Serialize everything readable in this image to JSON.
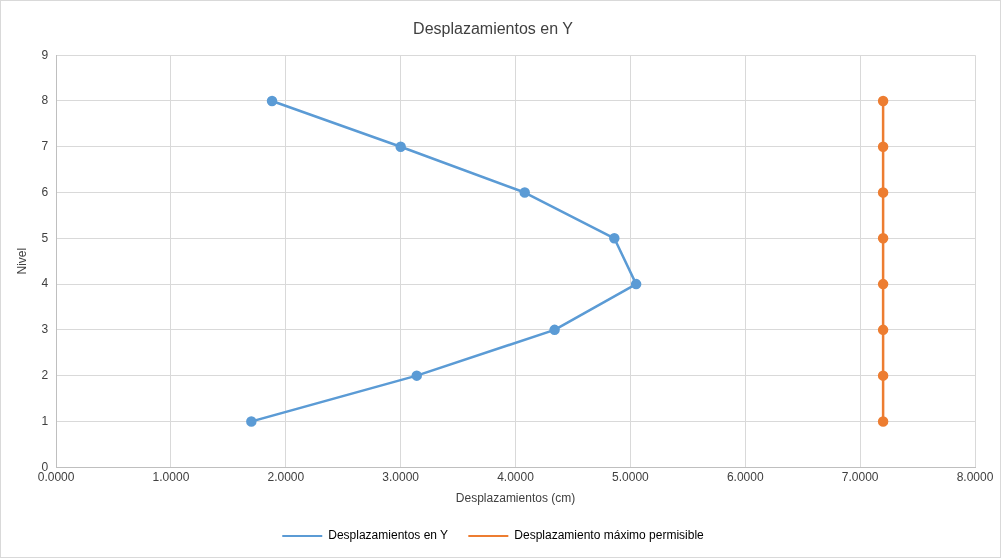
{
  "chart_data": {
    "type": "line",
    "title": "Desplazamientos en Y",
    "xlabel": "Desplazamientos (cm)",
    "ylabel": "Nivel",
    "series": [
      {
        "name": "Desplazamientos en Y",
        "color": "#5b9bd5",
        "x": [
          1.7,
          3.14,
          4.34,
          5.05,
          4.86,
          4.08,
          3.0,
          1.88
        ],
        "values": [
          1,
          2,
          3,
          4,
          5,
          6,
          7,
          8
        ]
      },
      {
        "name": "Desplazamiento máximo permisible",
        "color": "#ed7d31",
        "x": [
          7.2,
          7.2,
          7.2,
          7.2,
          7.2,
          7.2,
          7.2,
          7.2
        ],
        "values": [
          1,
          2,
          3,
          4,
          5,
          6,
          7,
          8
        ]
      }
    ],
    "xlim": [
      0,
      8
    ],
    "xticks": [
      {
        "value": 0,
        "label": "0.0000"
      },
      {
        "value": 1,
        "label": "1.0000"
      },
      {
        "value": 2,
        "label": "2.0000"
      },
      {
        "value": 3,
        "label": "3.0000"
      },
      {
        "value": 4,
        "label": "4.0000"
      },
      {
        "value": 5,
        "label": "5.0000"
      },
      {
        "value": 6,
        "label": "6.0000"
      },
      {
        "value": 7,
        "label": "7.0000"
      },
      {
        "value": 8,
        "label": "8.0000"
      }
    ],
    "ylim": [
      0,
      9
    ],
    "yticks": [
      0,
      1,
      2,
      3,
      4,
      5,
      6,
      7,
      8,
      9
    ],
    "grid": true,
    "legend": "bottom",
    "marker": "circle",
    "line_style": "solid"
  }
}
